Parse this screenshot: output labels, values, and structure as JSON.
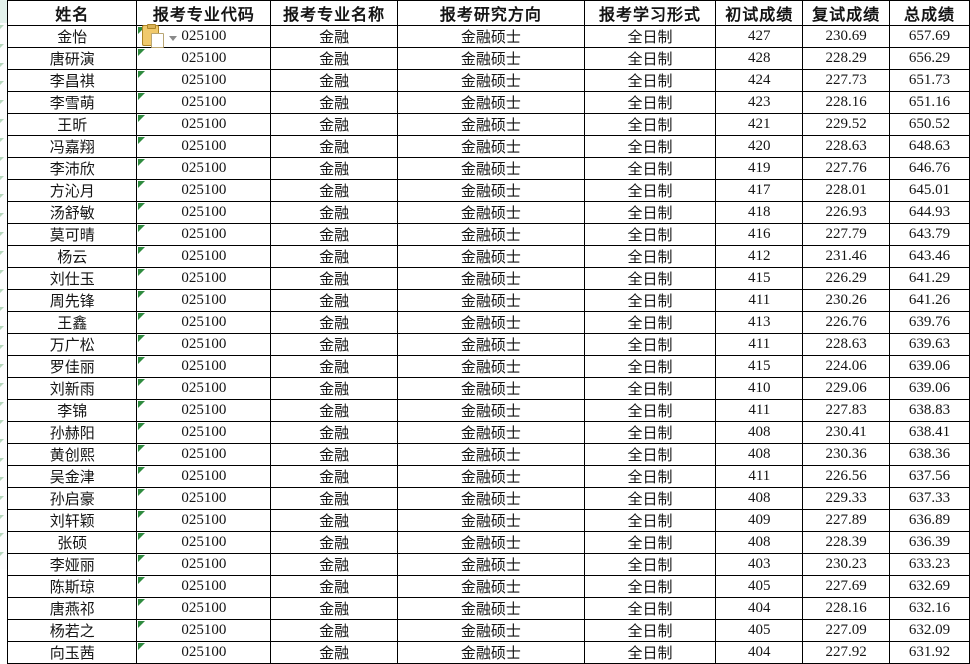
{
  "sheet": {
    "columns": [
      "姓名",
      "报考专业代码",
      "报考专业名称",
      "报考研究方向",
      "报考学习形式",
      "初试成绩",
      "复试成绩",
      "总成绩"
    ],
    "rows": [
      [
        "金怡",
        "025100",
        "金融",
        "金融硕士",
        "全日制",
        "427",
        "230.69",
        "657.69"
      ],
      [
        "唐研演",
        "025100",
        "金融",
        "金融硕士",
        "全日制",
        "428",
        "228.29",
        "656.29"
      ],
      [
        "李昌祺",
        "025100",
        "金融",
        "金融硕士",
        "全日制",
        "424",
        "227.73",
        "651.73"
      ],
      [
        "李雪萌",
        "025100",
        "金融",
        "金融硕士",
        "全日制",
        "423",
        "228.16",
        "651.16"
      ],
      [
        "王昕",
        "025100",
        "金融",
        "金融硕士",
        "全日制",
        "421",
        "229.52",
        "650.52"
      ],
      [
        "冯嘉翔",
        "025100",
        "金融",
        "金融硕士",
        "全日制",
        "420",
        "228.63",
        "648.63"
      ],
      [
        "李沛欣",
        "025100",
        "金融",
        "金融硕士",
        "全日制",
        "419",
        "227.76",
        "646.76"
      ],
      [
        "方沁月",
        "025100",
        "金融",
        "金融硕士",
        "全日制",
        "417",
        "228.01",
        "645.01"
      ],
      [
        "汤舒敏",
        "025100",
        "金融",
        "金融硕士",
        "全日制",
        "418",
        "226.93",
        "644.93"
      ],
      [
        "莫可晴",
        "025100",
        "金融",
        "金融硕士",
        "全日制",
        "416",
        "227.79",
        "643.79"
      ],
      [
        "杨云",
        "025100",
        "金融",
        "金融硕士",
        "全日制",
        "412",
        "231.46",
        "643.46"
      ],
      [
        "刘仕玉",
        "025100",
        "金融",
        "金融硕士",
        "全日制",
        "415",
        "226.29",
        "641.29"
      ],
      [
        "周先锋",
        "025100",
        "金融",
        "金融硕士",
        "全日制",
        "411",
        "230.26",
        "641.26"
      ],
      [
        "王鑫",
        "025100",
        "金融",
        "金融硕士",
        "全日制",
        "413",
        "226.76",
        "639.76"
      ],
      [
        "万广松",
        "025100",
        "金融",
        "金融硕士",
        "全日制",
        "411",
        "228.63",
        "639.63"
      ],
      [
        "罗佳丽",
        "025100",
        "金融",
        "金融硕士",
        "全日制",
        "415",
        "224.06",
        "639.06"
      ],
      [
        "刘新雨",
        "025100",
        "金融",
        "金融硕士",
        "全日制",
        "410",
        "229.06",
        "639.06"
      ],
      [
        "李锦",
        "025100",
        "金融",
        "金融硕士",
        "全日制",
        "411",
        "227.83",
        "638.83"
      ],
      [
        "孙赫阳",
        "025100",
        "金融",
        "金融硕士",
        "全日制",
        "408",
        "230.41",
        "638.41"
      ],
      [
        "黄创熙",
        "025100",
        "金融",
        "金融硕士",
        "全日制",
        "408",
        "230.36",
        "638.36"
      ],
      [
        "吴金津",
        "025100",
        "金融",
        "金融硕士",
        "全日制",
        "411",
        "226.56",
        "637.56"
      ],
      [
        "孙启豪",
        "025100",
        "金融",
        "金融硕士",
        "全日制",
        "408",
        "229.33",
        "637.33"
      ],
      [
        "刘轩颖",
        "025100",
        "金融",
        "金融硕士",
        "全日制",
        "409",
        "227.89",
        "636.89"
      ],
      [
        "张硕",
        "025100",
        "金融",
        "金融硕士",
        "全日制",
        "408",
        "228.39",
        "636.39"
      ],
      [
        "李娅丽",
        "025100",
        "金融",
        "金融硕士",
        "全日制",
        "403",
        "230.23",
        "633.23"
      ],
      [
        "陈斯琼",
        "025100",
        "金融",
        "金融硕士",
        "全日制",
        "405",
        "227.69",
        "632.69"
      ],
      [
        "唐燕祁",
        "025100",
        "金融",
        "金融硕士",
        "全日制",
        "404",
        "228.16",
        "632.16"
      ],
      [
        "杨若之",
        "025100",
        "金融",
        "金融硕士",
        "全日制",
        "405",
        "227.09",
        "632.09"
      ],
      [
        "向玉茜",
        "025100",
        "金融",
        "金融硕士",
        "全日制",
        "404",
        "227.92",
        "631.92"
      ]
    ]
  },
  "icons": {
    "paste_options": "clipboard-paste-options-icon",
    "cell_error_indicator": "green-corner-triangle-icon"
  },
  "colors": {
    "grid_border": "#000000",
    "error_triangle_green": "#2f8b3f",
    "clipboard_amber": "#f0c96c",
    "sliver_header_tint": "#e4f2ec"
  }
}
